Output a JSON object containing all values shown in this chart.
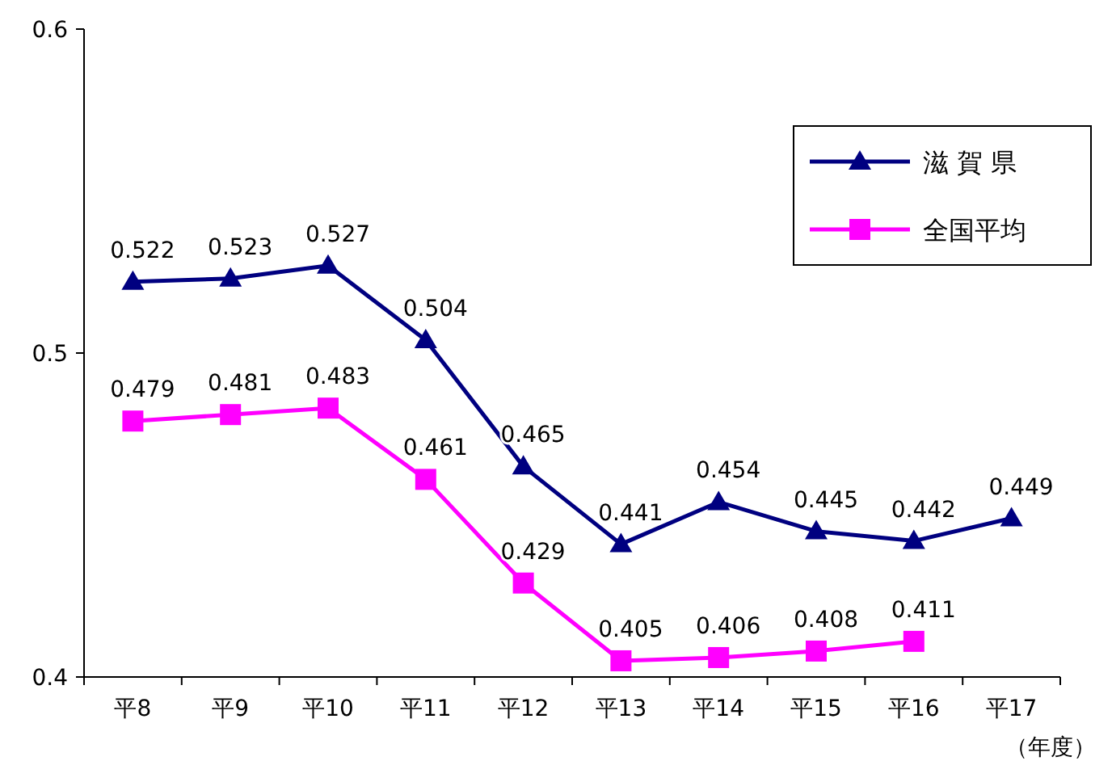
{
  "chart_data": {
    "type": "line",
    "xlabel": "（年度）",
    "categories": [
      "平8",
      "平9",
      "平10",
      "平11",
      "平12",
      "平13",
      "平14",
      "平15",
      "平16",
      "平17"
    ],
    "series": [
      {
        "name": "滋 賀 県",
        "color": "#000080",
        "marker": "triangle",
        "values": [
          0.522,
          0.523,
          0.527,
          0.504,
          0.465,
          0.441,
          0.454,
          0.445,
          0.442,
          0.449
        ]
      },
      {
        "name": "全国平均",
        "color": "#ff00ff",
        "marker": "square",
        "values": [
          0.479,
          0.481,
          0.483,
          0.461,
          0.429,
          0.405,
          0.406,
          0.408,
          0.411,
          null
        ]
      }
    ],
    "ylim": [
      0.4,
      0.6
    ],
    "yticks": [
      0.4,
      0.5,
      0.6
    ],
    "data_labels": true,
    "legend": "top right",
    "grid": false,
    "line_style": "solid"
  }
}
